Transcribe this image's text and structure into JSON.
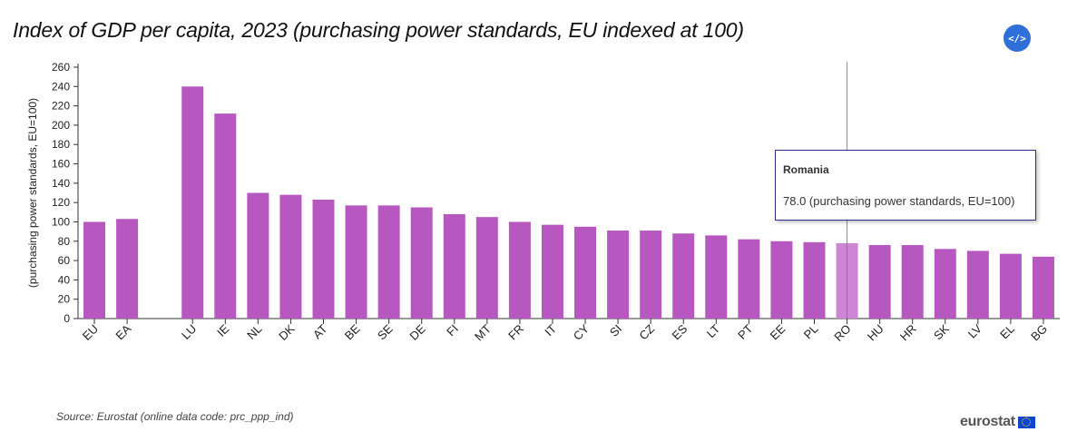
{
  "title": "Index of GDP per capita, 2023 (purchasing power standards, EU indexed at 100)",
  "embed_icon": "code-icon",
  "embed_label": "</>",
  "source": "Source: Eurostat (online data code: prc_ppp_ind)",
  "logo": {
    "text": "eurostat",
    "icon": "eu-flag-icon"
  },
  "tooltip": {
    "name": "Romania",
    "value_text": "78.0 (purchasing power standards, EU=100)"
  },
  "chart_data": {
    "type": "bar",
    "ylabel": "(purchasing power standards, EU=100)",
    "ylim": [
      0,
      260
    ],
    "yticks": [
      0,
      20,
      40,
      60,
      80,
      100,
      120,
      140,
      160,
      180,
      200,
      220,
      240,
      260
    ],
    "bar_color": "#b658bf",
    "highlight_color": "#cd86d3",
    "highlighted": "RO",
    "categories": [
      "EU",
      "EA",
      "",
      "LU",
      "IE",
      "NL",
      "DK",
      "AT",
      "BE",
      "SE",
      "DE",
      "FI",
      "MT",
      "FR",
      "IT",
      "CY",
      "SI",
      "CZ",
      "ES",
      "LT",
      "PT",
      "EE",
      "PL",
      "RO",
      "HU",
      "HR",
      "SK",
      "LV",
      "EL",
      "BG"
    ],
    "values": [
      100,
      103,
      null,
      240,
      212,
      130,
      128,
      123,
      117,
      117,
      115,
      108,
      105,
      100,
      97,
      95,
      91,
      91,
      88,
      86,
      82,
      80,
      79,
      78,
      76,
      76,
      72,
      70,
      67,
      64
    ]
  }
}
